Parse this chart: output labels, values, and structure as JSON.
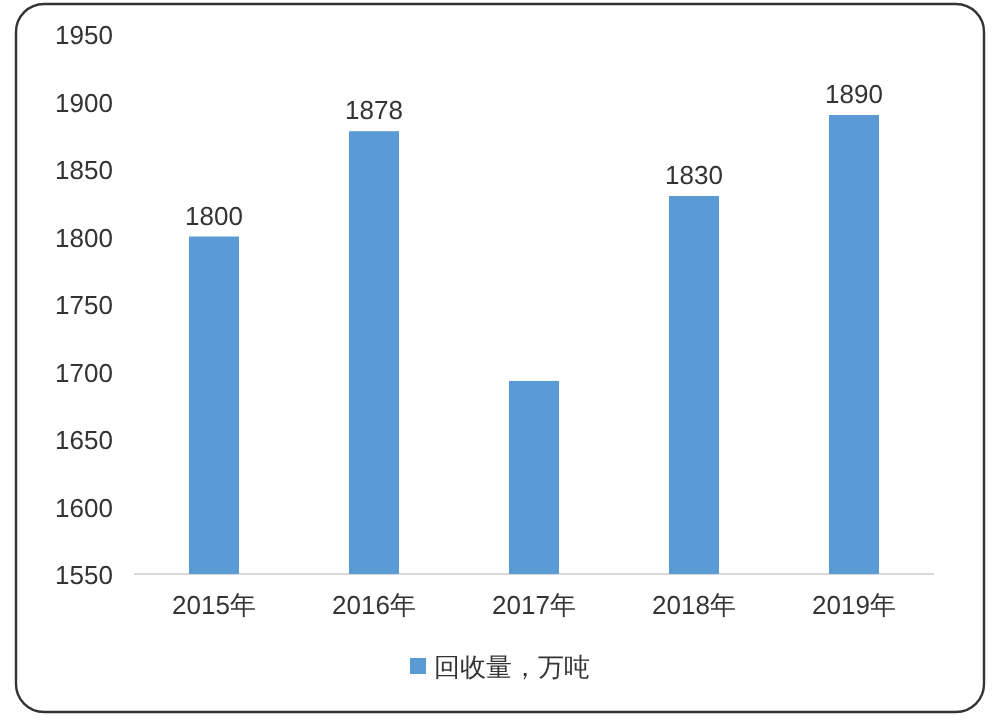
{
  "chart_data": {
    "type": "bar",
    "categories": [
      "2015年",
      "2016年",
      "2017年",
      "2018年",
      "2019年"
    ],
    "series": [
      {
        "name": "回收量，万吨",
        "color": "#5b9bd5",
        "values": [
          1800,
          1878,
          1693,
          1830,
          1890
        ],
        "value_labels": [
          "1800",
          "1878",
          null,
          "1830",
          "1890"
        ]
      }
    ],
    "ylim": [
      1550,
      1950
    ],
    "yticks": [
      1550,
      1600,
      1650,
      1700,
      1750,
      1800,
      1850,
      1900,
      1950
    ],
    "grid": false,
    "legend": "bottom"
  }
}
